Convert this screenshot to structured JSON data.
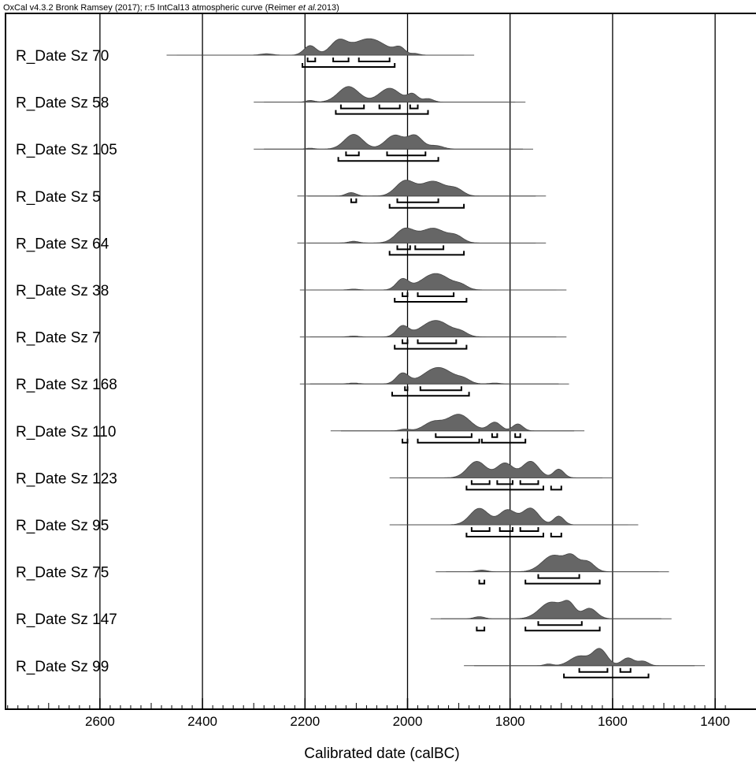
{
  "chart_data": {
    "type": "calibration-multiplot",
    "header": {
      "part1": "OxCal v4.3.2 Bronk Ramsey (2017); r:5 IntCal13 atmospheric curve (Reimer ",
      "part2": "et al.",
      "part3": "2013)"
    },
    "xlabel": "Calibrated date (calBC)",
    "x_reversed": true,
    "xlim": [
      2790,
      1380
    ],
    "x_ticks": [
      2600,
      2400,
      2200,
      2000,
      1800,
      1600,
      1400
    ],
    "grid": true,
    "series": [
      {
        "name": "R_Date Sz 70",
        "line": [
          2470,
          1870
        ],
        "peaks": [
          [
            2275,
            0.08,
            12
          ],
          [
            2190,
            0.55,
            12
          ],
          [
            2135,
            0.75,
            16
          ],
          [
            2075,
            0.95,
            32
          ],
          [
            2015,
            0.35,
            10
          ],
          [
            1985,
            0.08,
            8
          ]
        ],
        "r68": [
          [
            2195,
            2180
          ],
          [
            2145,
            2115
          ],
          [
            2095,
            2035
          ]
        ],
        "r95": [
          [
            2205,
            2025
          ]
        ]
      },
      {
        "name": "R_Date Sz 58",
        "line": [
          2300,
          1770
        ],
        "peaks": [
          [
            2190,
            0.1,
            8
          ],
          [
            2115,
            0.9,
            20
          ],
          [
            2035,
            0.8,
            20
          ],
          [
            1990,
            0.45,
            10
          ],
          [
            1960,
            0.2,
            10
          ]
        ],
        "r68": [
          [
            2130,
            2085
          ],
          [
            2055,
            2015
          ],
          [
            1995,
            1980
          ]
        ],
        "r95": [
          [
            2140,
            1960
          ]
        ]
      },
      {
        "name": "R_Date Sz 105",
        "line": [
          2300,
          1755
        ],
        "peaks": [
          [
            2190,
            0.05,
            8
          ],
          [
            2105,
            0.85,
            18
          ],
          [
            2025,
            0.8,
            18
          ],
          [
            1985,
            0.75,
            14
          ],
          [
            1945,
            0.2,
            14
          ]
        ],
        "r68": [
          [
            2120,
            2095
          ],
          [
            2040,
            1965
          ]
        ],
        "r95": [
          [
            2135,
            1940
          ]
        ]
      },
      {
        "name": "R_Date Sz 5",
        "line": [
          2215,
          1730
        ],
        "peaks": [
          [
            2110,
            0.2,
            10
          ],
          [
            2005,
            0.85,
            18
          ],
          [
            1950,
            0.85,
            24
          ],
          [
            1905,
            0.35,
            14
          ]
        ],
        "r68": [
          [
            2110,
            2100
          ],
          [
            2020,
            1940
          ]
        ],
        "r95": [
          [
            2035,
            1890
          ]
        ]
      },
      {
        "name": "R_Date Sz 64",
        "line": [
          2215,
          1730
        ],
        "peaks": [
          [
            2105,
            0.1,
            10
          ],
          [
            2005,
            0.8,
            18
          ],
          [
            1950,
            0.85,
            24
          ],
          [
            1905,
            0.35,
            14
          ]
        ],
        "r68": [
          [
            2020,
            1995
          ],
          [
            1985,
            1930
          ]
        ],
        "r95": [
          [
            2035,
            1890
          ]
        ]
      },
      {
        "name": "R_Date Sz 38",
        "line": [
          2210,
          1690
        ],
        "peaks": [
          [
            2105,
            0.05,
            10
          ],
          [
            2010,
            0.6,
            12
          ],
          [
            1945,
            0.95,
            28
          ],
          [
            1895,
            0.2,
            12
          ]
        ],
        "r68": [
          [
            2010,
            2000
          ],
          [
            1980,
            1910
          ]
        ],
        "r95": [
          [
            2025,
            1885
          ]
        ]
      },
      {
        "name": "R_Date Sz 7",
        "line": [
          2210,
          1690
        ],
        "peaks": [
          [
            2105,
            0.05,
            10
          ],
          [
            2010,
            0.6,
            12
          ],
          [
            1945,
            0.95,
            28
          ],
          [
            1895,
            0.2,
            12
          ]
        ],
        "r68": [
          [
            2010,
            2000
          ],
          [
            1980,
            1905
          ]
        ],
        "r95": [
          [
            2025,
            1885
          ]
        ]
      },
      {
        "name": "R_Date Sz 168",
        "line": [
          2210,
          1685
        ],
        "peaks": [
          [
            2105,
            0.05,
            10
          ],
          [
            2010,
            0.6,
            12
          ],
          [
            1940,
            0.95,
            28
          ],
          [
            1890,
            0.2,
            12
          ],
          [
            1830,
            0.05,
            10
          ]
        ],
        "r68": [
          [
            2005,
            2000
          ],
          [
            1975,
            1895
          ]
        ],
        "r95": [
          [
            2030,
            1880
          ]
        ]
      },
      {
        "name": "R_Date Sz 110",
        "line": [
          2150,
          1655
        ],
        "peaks": [
          [
            2005,
            0.1,
            10
          ],
          [
            1950,
            0.5,
            18
          ],
          [
            1900,
            0.95,
            22
          ],
          [
            1830,
            0.5,
            12
          ],
          [
            1785,
            0.4,
            10
          ]
        ],
        "r68": [
          [
            1945,
            1875
          ],
          [
            1835,
            1825
          ],
          [
            1790,
            1780
          ]
        ],
        "r95": [
          [
            2010,
            2000
          ],
          [
            1980,
            1860
          ],
          [
            1855,
            1770
          ]
        ]
      },
      {
        "name": "R_Date Sz 123",
        "line": [
          2035,
          1600
        ],
        "peaks": [
          [
            1865,
            0.95,
            18
          ],
          [
            1810,
            0.85,
            16
          ],
          [
            1760,
            0.95,
            16
          ],
          [
            1705,
            0.5,
            10
          ]
        ],
        "r68": [
          [
            1875,
            1840
          ],
          [
            1825,
            1795
          ],
          [
            1780,
            1745
          ]
        ],
        "r95": [
          [
            1885,
            1735
          ],
          [
            1720,
            1700
          ]
        ]
      },
      {
        "name": "R_Date Sz 95",
        "line": [
          2035,
          1550
        ],
        "peaks": [
          [
            1860,
            0.95,
            18
          ],
          [
            1805,
            0.85,
            16
          ],
          [
            1760,
            0.95,
            16
          ],
          [
            1705,
            0.5,
            10
          ]
        ],
        "r68": [
          [
            1875,
            1840
          ],
          [
            1820,
            1795
          ],
          [
            1780,
            1745
          ]
        ],
        "r95": [
          [
            1885,
            1735
          ],
          [
            1720,
            1700
          ]
        ]
      },
      {
        "name": "R_Date Sz 75",
        "line": [
          1945,
          1490
        ],
        "peaks": [
          [
            1855,
            0.1,
            10
          ],
          [
            1715,
            0.95,
            22
          ],
          [
            1680,
            0.7,
            12
          ],
          [
            1650,
            0.6,
            14
          ]
        ],
        "r68": [
          [
            1745,
            1665
          ]
        ],
        "r95": [
          [
            1860,
            1850
          ],
          [
            1770,
            1625
          ]
        ]
      },
      {
        "name": "R_Date Sz 147",
        "line": [
          1955,
          1485
        ],
        "peaks": [
          [
            1860,
            0.12,
            10
          ],
          [
            1720,
            0.95,
            22
          ],
          [
            1685,
            0.75,
            12
          ],
          [
            1645,
            0.6,
            14
          ]
        ],
        "r68": [
          [
            1745,
            1660
          ]
        ],
        "r95": [
          [
            1865,
            1850
          ],
          [
            1770,
            1625
          ]
        ]
      },
      {
        "name": "R_Date Sz 99",
        "line": [
          1890,
          1420
        ],
        "peaks": [
          [
            1725,
            0.1,
            8
          ],
          [
            1665,
            0.55,
            18
          ],
          [
            1625,
            0.95,
            14
          ],
          [
            1570,
            0.45,
            12
          ],
          [
            1540,
            0.25,
            10
          ]
        ],
        "r68": [
          [
            1665,
            1610
          ],
          [
            1585,
            1565
          ]
        ],
        "r95": [
          [
            1695,
            1530
          ]
        ]
      }
    ]
  }
}
